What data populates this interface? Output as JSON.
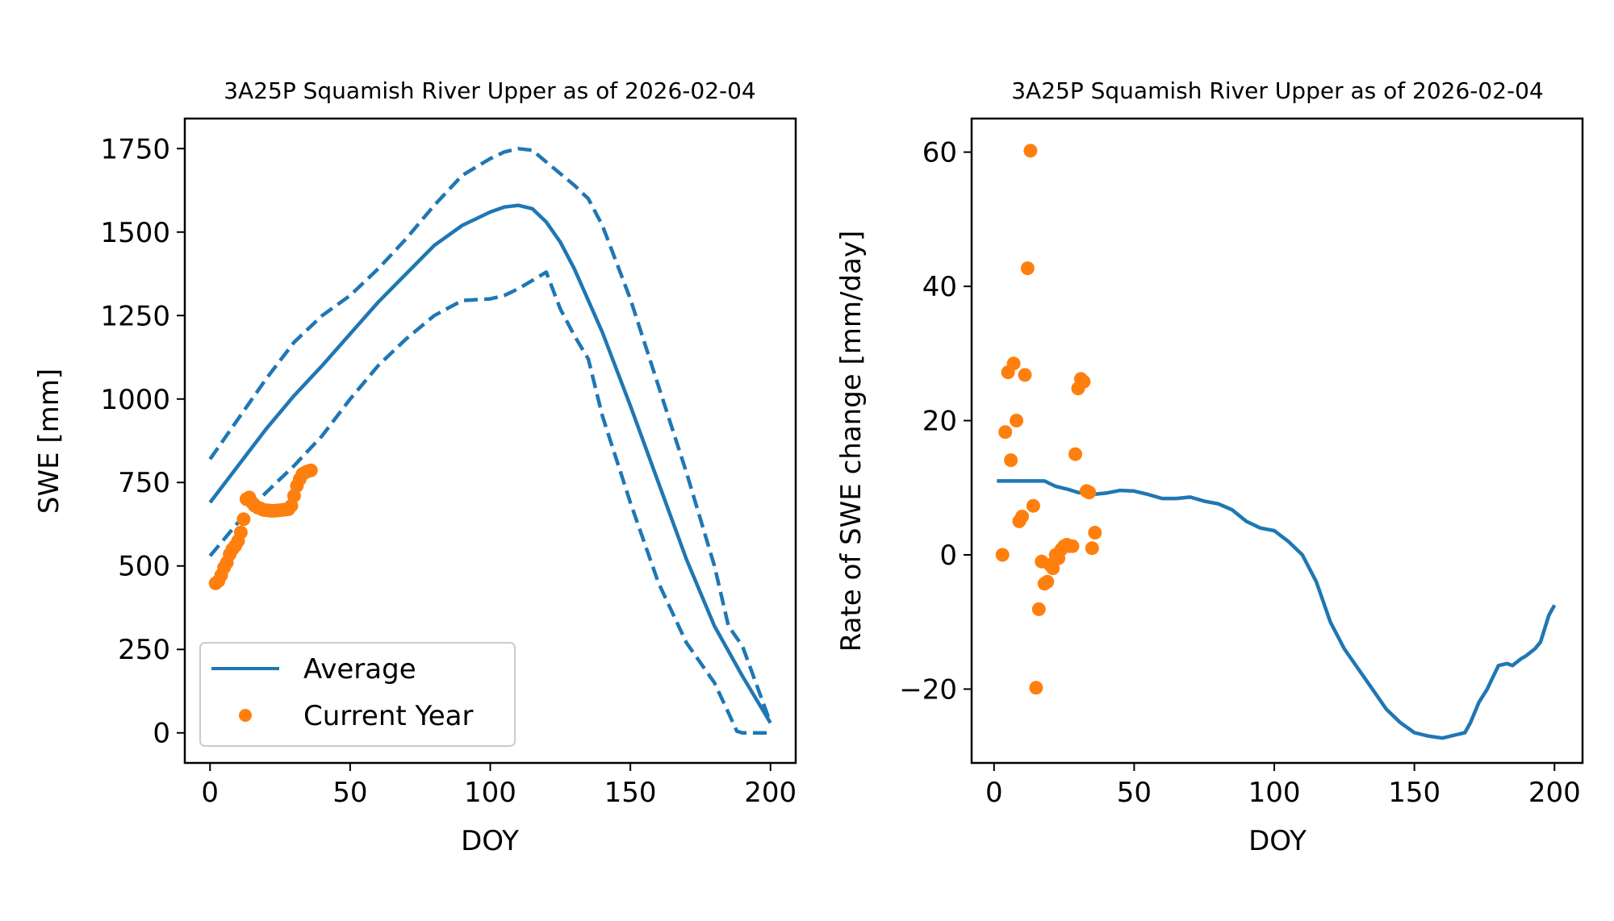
{
  "chart_data": [
    {
      "type": "line",
      "title": "3A25P Squamish River Upper as of 2026-02-04",
      "xlabel": "DOY",
      "ylabel": "SWE [mm]",
      "xlim": [
        -9,
        209
      ],
      "ylim": [
        -90,
        1840
      ],
      "xticks": [
        0,
        50,
        100,
        150,
        200
      ],
      "yticks": [
        0,
        250,
        500,
        750,
        1000,
        1250,
        1500,
        1750
      ],
      "grid": false,
      "legend": {
        "placement": "lower-left",
        "entries": [
          "Average",
          "Current Year"
        ]
      },
      "series": [
        {
          "name": "Average",
          "style": "solid",
          "color": "#1f77b4",
          "x": [
            0,
            10,
            20,
            30,
            40,
            50,
            60,
            70,
            80,
            90,
            100,
            105,
            110,
            115,
            120,
            125,
            130,
            140,
            150,
            160,
            170,
            180,
            190,
            200
          ],
          "y": [
            690,
            800,
            910,
            1010,
            1100,
            1195,
            1290,
            1375,
            1460,
            1520,
            1560,
            1575,
            1580,
            1570,
            1530,
            1470,
            1390,
            1200,
            980,
            750,
            520,
            320,
            170,
            30
          ]
        },
        {
          "name": "Upper bound",
          "style": "dashed",
          "color": "#1f77b4",
          "x": [
            0,
            10,
            20,
            30,
            40,
            50,
            60,
            70,
            80,
            90,
            100,
            105,
            110,
            115,
            120,
            130,
            135,
            140,
            150,
            160,
            170,
            180,
            185,
            190,
            200
          ],
          "y": [
            820,
            940,
            1060,
            1170,
            1250,
            1310,
            1390,
            1480,
            1580,
            1670,
            1720,
            1740,
            1750,
            1745,
            1710,
            1640,
            1600,
            1520,
            1300,
            1040,
            780,
            500,
            320,
            260,
            30
          ]
        },
        {
          "name": "Lower bound",
          "style": "dashed",
          "color": "#1f77b4",
          "x": [
            0,
            10,
            20,
            30,
            40,
            50,
            60,
            70,
            80,
            90,
            100,
            105,
            110,
            115,
            120,
            125,
            130,
            135,
            140,
            150,
            160,
            170,
            180,
            185,
            188,
            190,
            195,
            200
          ],
          "y": [
            530,
            630,
            720,
            800,
            890,
            1000,
            1100,
            1180,
            1250,
            1295,
            1300,
            1310,
            1330,
            1355,
            1380,
            1270,
            1190,
            1120,
            950,
            690,
            450,
            270,
            150,
            60,
            5,
            0,
            0,
            0
          ]
        },
        {
          "name": "Current Year",
          "style": "points",
          "color": "#ff7f0e",
          "x": [
            2,
            3,
            4,
            5,
            6,
            7,
            8,
            9,
            10,
            11,
            12,
            13,
            14,
            15,
            16,
            17,
            18,
            19,
            20,
            21,
            22,
            23,
            24,
            25,
            26,
            27,
            28,
            29,
            30,
            31,
            32,
            33,
            34,
            35,
            36
          ],
          "y": [
            448,
            455,
            472,
            495,
            510,
            535,
            550,
            560,
            575,
            600,
            640,
            700,
            705,
            690,
            680,
            675,
            672,
            668,
            667,
            666,
            665,
            665,
            666,
            667,
            668,
            669,
            670,
            680,
            710,
            740,
            760,
            775,
            780,
            784,
            786
          ]
        }
      ]
    },
    {
      "type": "line",
      "title": "3A25P Squamish River Upper as of 2026-02-04",
      "xlabel": "DOY",
      "ylabel": "Rate of SWE change [mm/day]",
      "xlim": [
        -8,
        210
      ],
      "ylim": [
        -31,
        65
      ],
      "xticks": [
        0,
        50,
        100,
        150,
        200
      ],
      "yticks": [
        -20,
        0,
        20,
        40,
        60
      ],
      "grid": false,
      "series": [
        {
          "name": "Average",
          "style": "solid",
          "color": "#1f77b4",
          "x": [
            1,
            10,
            18,
            22,
            26,
            30,
            35,
            40,
            45,
            50,
            55,
            60,
            65,
            70,
            75,
            80,
            85,
            90,
            95,
            100,
            105,
            110,
            115,
            120,
            125,
            130,
            135,
            140,
            145,
            150,
            155,
            160,
            165,
            168,
            170,
            173,
            176,
            180,
            183,
            185,
            188,
            190,
            193,
            195,
            198,
            200
          ],
          "y": [
            11,
            11,
            11,
            10.2,
            9.8,
            9.3,
            9,
            9.2,
            9.6,
            9.5,
            9,
            8.4,
            8.4,
            8.6,
            8,
            7.6,
            6.7,
            5,
            4,
            3.6,
            2,
            0,
            -4,
            -10,
            -14,
            -17,
            -20,
            -23,
            -25,
            -26.5,
            -27,
            -27.3,
            -26.8,
            -26.5,
            -25,
            -22,
            -20,
            -16.5,
            -16.2,
            -16.5,
            -15.5,
            -15,
            -14,
            -13,
            -9,
            -7.5
          ]
        },
        {
          "name": "Current Year",
          "style": "points",
          "color": "#ff7f0e",
          "x": [
            3,
            4,
            5,
            6,
            7,
            8,
            9,
            10,
            11,
            12,
            13,
            14,
            15,
            16,
            17,
            18,
            19,
            20,
            21,
            22,
            23,
            24,
            25,
            26,
            27,
            28,
            29,
            30,
            31,
            32,
            33,
            34,
            35,
            36
          ],
          "y": [
            0,
            18.3,
            27.2,
            14.1,
            28.5,
            20,
            5,
            5.7,
            26.8,
            42.7,
            60.2,
            7.3,
            -19.8,
            -8.1,
            -1,
            -4.3,
            -4,
            -1.5,
            -2,
            0,
            -0.5,
            0.8,
            1.3,
            1.5,
            1.3,
            1.3,
            15,
            24.8,
            26.2,
            25.8,
            9.5,
            9.3,
            1,
            3.3
          ]
        }
      ]
    }
  ]
}
